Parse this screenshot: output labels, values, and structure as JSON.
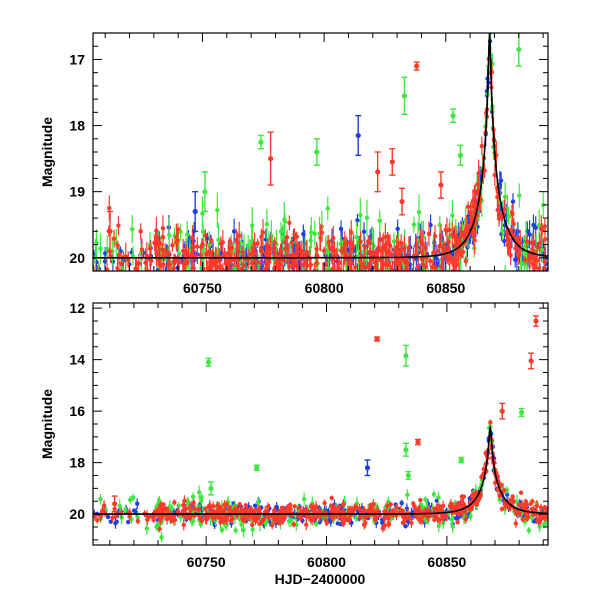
{
  "figure": {
    "xlabel": "HJD−2400000"
  },
  "chart_data": [
    {
      "type": "scatter",
      "title": "",
      "xlabel": "",
      "ylabel": "Magnitude",
      "xlim": [
        60705,
        60892
      ],
      "ylim": [
        20.2,
        16.6
      ],
      "y_inverted": true,
      "xticks": [
        60750,
        60800,
        60850
      ],
      "yticks": [
        17,
        18,
        19,
        20
      ],
      "series_colors": [
        "#1f3fe0",
        "#ff3a2a",
        "#3ee83e"
      ],
      "model_curve_color": "#000000",
      "baseline_mag": 20.0,
      "peak": {
        "x": 60868,
        "y": 16.6
      },
      "outliers": [
        {
          "series": 1,
          "x": 60838,
          "y": 17.1,
          "err": 0.06
        },
        {
          "series": 2,
          "x": 60833,
          "y": 17.55,
          "err": 0.28
        },
        {
          "series": 2,
          "x": 60880,
          "y": 16.85,
          "err": 0.25
        },
        {
          "series": 2,
          "x": 60853,
          "y": 17.85,
          "err": 0.1
        },
        {
          "series": 2,
          "x": 60774,
          "y": 18.25,
          "err": 0.1
        },
        {
          "series": 1,
          "x": 60778,
          "y": 18.5,
          "err": 0.4
        },
        {
          "series": 2,
          "x": 60797,
          "y": 18.4,
          "err": 0.2
        },
        {
          "series": 0,
          "x": 60814,
          "y": 18.15,
          "err": 0.3
        },
        {
          "series": 1,
          "x": 60822,
          "y": 18.7,
          "err": 0.3
        },
        {
          "series": 1,
          "x": 60828,
          "y": 18.55,
          "err": 0.2
        },
        {
          "series": 1,
          "x": 60832,
          "y": 19.15,
          "err": 0.2
        },
        {
          "series": 2,
          "x": 60751,
          "y": 19.0,
          "err": 0.3
        },
        {
          "series": 0,
          "x": 60747,
          "y": 19.3,
          "err": 0.3
        },
        {
          "series": 2,
          "x": 60856,
          "y": 18.45,
          "err": 0.15
        },
        {
          "series": 1,
          "x": 60848,
          "y": 18.9,
          "err": 0.2
        },
        {
          "series": 1,
          "x": 60712,
          "y": 19.6,
          "err": 0.3
        }
      ]
    },
    {
      "type": "scatter",
      "title": "",
      "xlabel": "HJD−2400000",
      "ylabel": "Magnitude",
      "xlim": [
        60703,
        60892
      ],
      "ylim": [
        21.2,
        11.8
      ],
      "y_inverted": true,
      "xticks": [
        60750,
        60800,
        60850
      ],
      "yticks": [
        12,
        14,
        16,
        18,
        20
      ],
      "series_colors": [
        "#1f3fe0",
        "#ff3a2a",
        "#3ee83e"
      ],
      "model_curve_color": "#000000",
      "baseline_mag": 20.0,
      "peak": {
        "x": 60868,
        "y": 16.6
      },
      "outliers": [
        {
          "series": 1,
          "x": 60821,
          "y": 13.2,
          "err": 0.08
        },
        {
          "series": 2,
          "x": 60833,
          "y": 13.85,
          "err": 0.4
        },
        {
          "series": 2,
          "x": 60751,
          "y": 14.1,
          "err": 0.15
        },
        {
          "series": 1,
          "x": 60887,
          "y": 12.5,
          "err": 0.2
        },
        {
          "series": 1,
          "x": 60885,
          "y": 14.05,
          "err": 0.3
        },
        {
          "series": 1,
          "x": 60873,
          "y": 16.0,
          "err": 0.3
        },
        {
          "series": 2,
          "x": 60881,
          "y": 16.05,
          "err": 0.15
        },
        {
          "series": 1,
          "x": 60838,
          "y": 17.2,
          "err": 0.1
        },
        {
          "series": 2,
          "x": 60833,
          "y": 17.5,
          "err": 0.25
        },
        {
          "series": 2,
          "x": 60856,
          "y": 17.9,
          "err": 0.1
        },
        {
          "series": 2,
          "x": 60771,
          "y": 18.2,
          "err": 0.1
        },
        {
          "series": 2,
          "x": 60834,
          "y": 18.5,
          "err": 0.15
        },
        {
          "series": 2,
          "x": 60752,
          "y": 19.0,
          "err": 0.25
        },
        {
          "series": 0,
          "x": 60817,
          "y": 18.2,
          "err": 0.3
        },
        {
          "series": 1,
          "x": 60712,
          "y": 19.6,
          "err": 0.3
        }
      ]
    }
  ]
}
